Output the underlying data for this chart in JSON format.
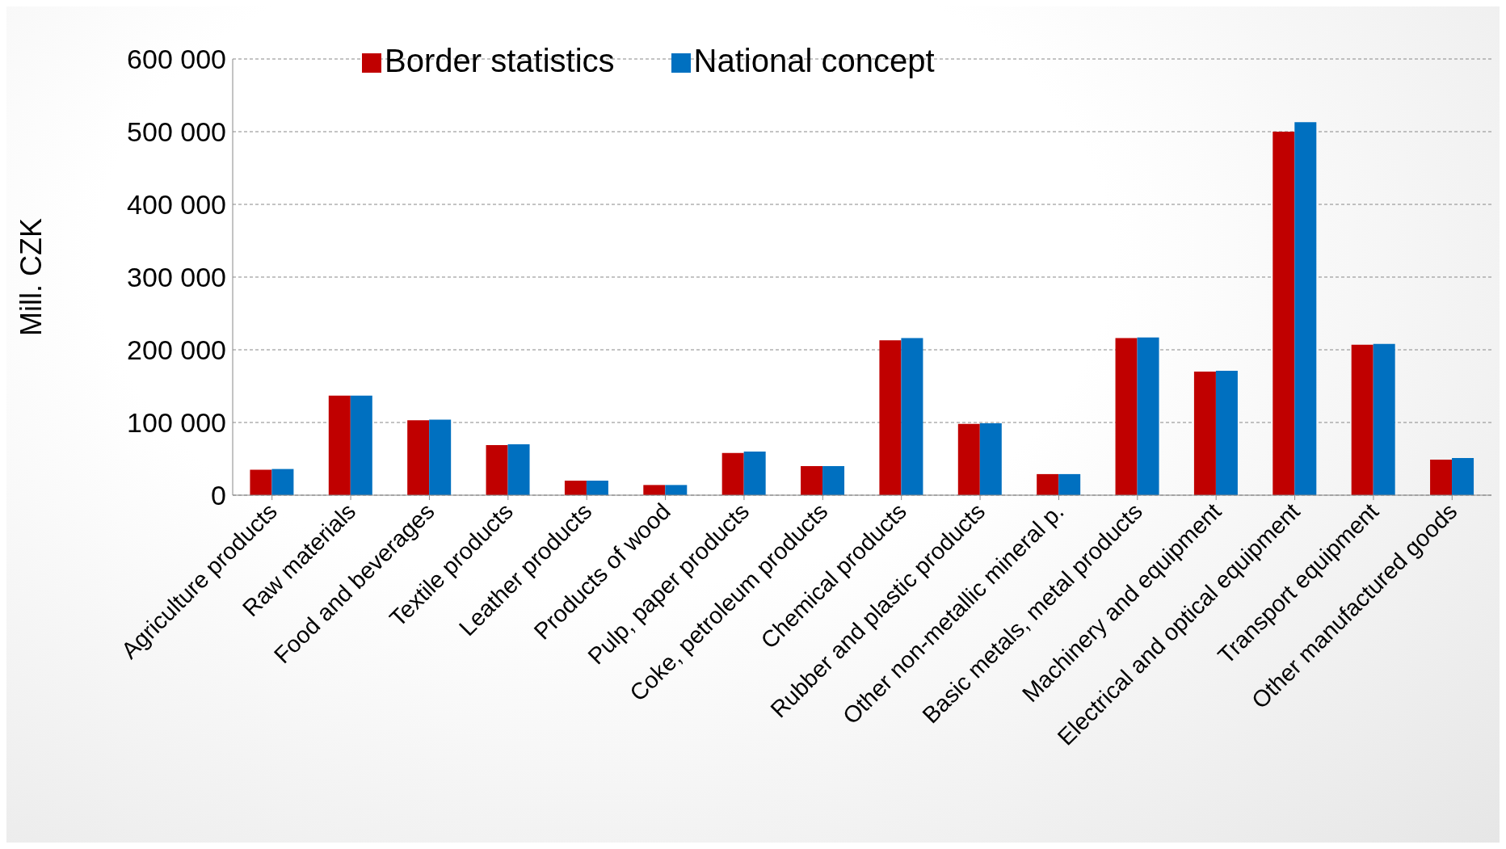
{
  "chart_data": {
    "type": "bar",
    "ylabel": "Mill. CZK",
    "categories": [
      "Agriculture products",
      "Raw materials",
      "Food and beverages",
      "Textile products",
      "Leather products",
      "Products of wood",
      "Pulp, paper products",
      "Coke, petroleum products",
      "Chemical products",
      "Rubber and plastic products",
      "Other non-metallic mineral p.",
      "Basic metals, metal products",
      "Machinery and equipment",
      "Electrical and optical equipment",
      "Transport equipment",
      "Other manufactured goods"
    ],
    "series": [
      {
        "name": "Border statistics",
        "color": "#c00000",
        "values": [
          35000,
          137000,
          103000,
          69000,
          20000,
          14000,
          58000,
          40000,
          213000,
          98000,
          29000,
          216000,
          170000,
          500000,
          207000,
          49000
        ]
      },
      {
        "name": "National concept",
        "color": "#0070c0",
        "values": [
          36000,
          137000,
          104000,
          70000,
          20000,
          14000,
          60000,
          40000,
          216000,
          99000,
          29000,
          217000,
          171000,
          513000,
          208000,
          51000
        ]
      }
    ],
    "ylim": [
      0,
      600000
    ],
    "yticks": [
      {
        "value": 0,
        "label": "0"
      },
      {
        "value": 100000,
        "label": "100 000"
      },
      {
        "value": 200000,
        "label": "200 000"
      },
      {
        "value": 300000,
        "label": "300 000"
      },
      {
        "value": 400000,
        "label": "400 000"
      },
      {
        "value": 500000,
        "label": "500 000"
      },
      {
        "value": 600000,
        "label": "600 000"
      }
    ],
    "grid": "y",
    "legend": "top left"
  }
}
